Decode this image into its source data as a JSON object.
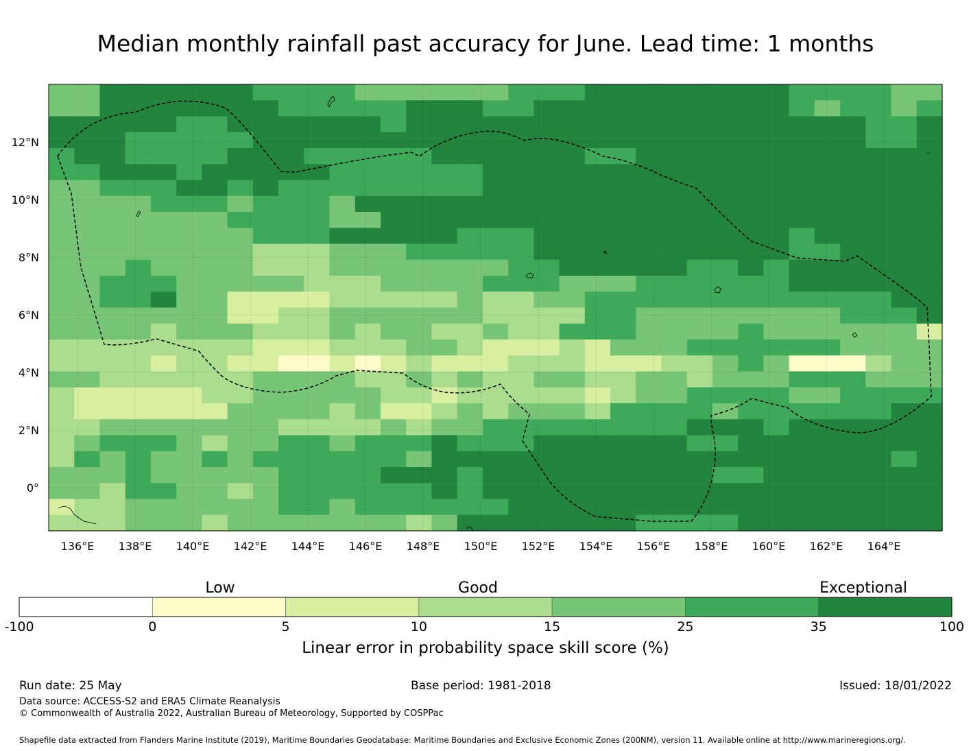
{
  "title": "Median monthly rainfall past accuracy for June. Lead time: 1 months",
  "map": {
    "lon_labels": [
      "136°E",
      "138°E",
      "140°E",
      "142°E",
      "144°E",
      "146°E",
      "148°E",
      "150°E",
      "152°E",
      "154°E",
      "156°E",
      "158°E",
      "160°E",
      "162°E",
      "164°E"
    ],
    "lat_labels": [
      "12°N",
      "10°N",
      "8°N",
      "6°N",
      "4°N",
      "2°N",
      "0°"
    ]
  },
  "colorbar": {
    "categories": [
      "Low",
      "Good",
      "Exceptional"
    ],
    "ticks": [
      "-100",
      "0",
      "5",
      "10",
      "15",
      "25",
      "35",
      "100"
    ],
    "colors": [
      "#ffffff",
      "#fffdcb",
      "#d8eea0",
      "#acdd8e",
      "#78c578",
      "#3fa95a",
      "#23843f"
    ],
    "label": "Linear error in probability space skill score (%)"
  },
  "footer": {
    "run_date": "Run date: 25 May",
    "base_period": "Base period: 1981-2018",
    "issued": "Issued: 18/01/2022",
    "data_source": "Data source: ACCESS-S2 and ERA5 Climate Reanalysis",
    "copyright": "© Commonwealth of Australia 2022, Australian Bureau of Meteorology, Supported by COSPPac",
    "shapefile": "Shapefile data extracted from Flanders Marine Institute (2019), Maritime Boundaries Geodatabase: Maritime Boundaries and Exclusive Economic Zones (200NM), version 11. Available online at http://www.marineregions.org/."
  },
  "grid_rows": [
    "44666666555544444455566666666555544",
    "44666666655555666556666666666545545",
    "66666556666665666666666666666666556",
    "66655555666666666666666666666666556",
    "56655556665555566666655666666666666",
    "55666566666555555666666666666666666",
    "44555665655555555666666666666666666",
    "44445554555466666666666666666666666",
    "44444445555446666666666666666666666",
    "44444444555666665556666666666566666",
    "44444444333444555556666666666556666",
    "44454444333444444455666665565666666",
    "44555444443334444555444555555666666",
    "44556442222333334334455555555555566",
    "44444442233444444333355444444445556",
    "44443444333434433433555444454444442",
    "33333333222333443222324445555554444",
    "33332332211212322233322233454111344",
    "44333333444433434334433443444555444",
    "32222233444443323333323445555445555",
    "32222224444342234344435555455555566",
    "33444444433334344555555556665666666",
    "34555434455455565556666665566666666",
    "35454454555555466666666666666666656",
    "44454444455556665666666666556666666",
    "44355443455555565666666666666666666",
    "23344444455455555566666666666666666",
    "33344434444444346666666555566666666"
  ]
}
